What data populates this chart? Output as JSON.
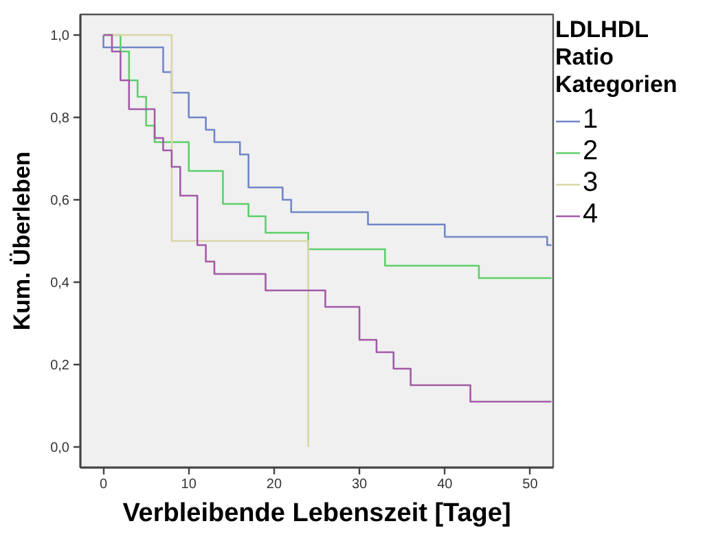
{
  "chart_data": {
    "type": "step",
    "xlabel": "Verbleibende Lebenszeit [Tage]",
    "ylabel": "Kum. Überleben",
    "legend_title": "LDLHDL Ratio Kategorien",
    "legend": "right",
    "grid": false,
    "xlim": [
      -2.7,
      52.7
    ],
    "ylim": [
      -0.05,
      1.05
    ],
    "xticks": [
      0,
      10,
      20,
      30,
      40,
      50
    ],
    "yticks": [
      {
        "value": 0,
        "label": "0,0"
      },
      {
        "value": 0.2,
        "label": "0,2"
      },
      {
        "value": 0.4,
        "label": "0,4"
      },
      {
        "value": 0.6,
        "label": "0,6"
      },
      {
        "value": 0.8,
        "label": "0,8"
      },
      {
        "value": 1,
        "label": "1,0"
      }
    ],
    "series": [
      {
        "name": "1",
        "color": "#7186c8",
        "x": [
          0,
          0,
          7,
          8,
          10,
          12,
          13,
          16,
          17,
          21,
          22,
          31,
          40,
          52,
          52.5
        ],
        "values": [
          1.0,
          0.97,
          0.91,
          0.86,
          0.8,
          0.77,
          0.74,
          0.71,
          0.63,
          0.6,
          0.57,
          0.54,
          0.51,
          0.49,
          0.49
        ]
      },
      {
        "name": "2",
        "color": "#5dcf6a",
        "x": [
          0,
          2,
          3,
          4,
          5,
          6,
          10,
          14,
          17,
          19,
          24,
          33,
          44,
          52.5
        ],
        "values": [
          1.0,
          0.96,
          0.89,
          0.85,
          0.78,
          0.74,
          0.67,
          0.59,
          0.56,
          0.52,
          0.48,
          0.44,
          0.41,
          0.41
        ]
      },
      {
        "name": "3",
        "color": "#d9d5a6",
        "x": [
          0,
          8,
          24
        ],
        "values": [
          1.0,
          0.5,
          0.0
        ]
      },
      {
        "name": "4",
        "color": "#a35aa6",
        "x": [
          0,
          1,
          2,
          3,
          6,
          7,
          8,
          9,
          11,
          12,
          13,
          19,
          26,
          30,
          32,
          34,
          36,
          43,
          52.5
        ],
        "values": [
          1.0,
          0.96,
          0.89,
          0.82,
          0.75,
          0.72,
          0.68,
          0.61,
          0.49,
          0.45,
          0.42,
          0.38,
          0.34,
          0.26,
          0.23,
          0.19,
          0.15,
          0.11,
          0.11
        ]
      }
    ]
  }
}
